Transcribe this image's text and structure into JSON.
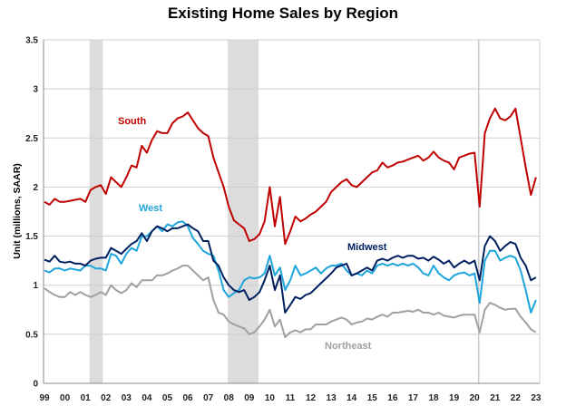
{
  "chart_data": {
    "type": "line",
    "title": "Existing Home Sales by Region",
    "ylabel": "Unit (millions, SAAR)",
    "xlabel": "",
    "ylim": [
      0,
      3.5
    ],
    "yticks": [
      "0",
      "0.5",
      "1",
      "1.5",
      "2",
      "2.5",
      "3",
      "3.5"
    ],
    "xlim": [
      1999,
      2023.2
    ],
    "xtick_labels": [
      "99",
      "00",
      "01",
      "02",
      "03",
      "04",
      "05",
      "06",
      "07",
      "08",
      "09",
      "10",
      "11",
      "12",
      "13",
      "14",
      "15",
      "16",
      "17",
      "18",
      "19",
      "20",
      "21",
      "22",
      "23"
    ],
    "grid": "horizontal",
    "shaded_periods": [
      [
        2001.2,
        2001.85
      ],
      [
        2007.95,
        2009.45
      ]
    ],
    "vertical_markers": [
      2020.2
    ],
    "x_start": 1999,
    "x_step_years": 0.25,
    "series": [
      {
        "name": "South",
        "color": "#C00000",
        "values": [
          1.85,
          1.82,
          1.88,
          1.85,
          1.85,
          1.86,
          1.87,
          1.88,
          1.85,
          1.97,
          2.0,
          2.02,
          1.93,
          2.1,
          2.05,
          2.0,
          2.1,
          2.22,
          2.2,
          2.42,
          2.35,
          2.48,
          2.57,
          2.55,
          2.55,
          2.65,
          2.7,
          2.72,
          2.76,
          2.68,
          2.6,
          2.55,
          2.52,
          2.3,
          2.15,
          2.0,
          1.8,
          1.66,
          1.62,
          1.58,
          1.45,
          1.47,
          1.52,
          1.65,
          2.0,
          1.6,
          1.9,
          1.42,
          1.55,
          1.7,
          1.65,
          1.68,
          1.72,
          1.75,
          1.8,
          1.85,
          1.95,
          2.0,
          2.05,
          2.08,
          2.02,
          2.0,
          2.05,
          2.1,
          2.15,
          2.17,
          2.25,
          2.2,
          2.22,
          2.25,
          2.26,
          2.28,
          2.3,
          2.32,
          2.27,
          2.3,
          2.36,
          2.3,
          2.27,
          2.25,
          2.18,
          2.3,
          2.32,
          2.34,
          2.35,
          1.8,
          2.55,
          2.7,
          2.8,
          2.7,
          2.68,
          2.72,
          2.8,
          2.5,
          2.2,
          1.92,
          2.1
        ]
      },
      {
        "name": "Midwest",
        "color": "#002060",
        "values": [
          1.26,
          1.24,
          1.3,
          1.24,
          1.23,
          1.24,
          1.22,
          1.22,
          1.2,
          1.25,
          1.27,
          1.28,
          1.28,
          1.38,
          1.35,
          1.32,
          1.37,
          1.42,
          1.45,
          1.53,
          1.45,
          1.55,
          1.6,
          1.58,
          1.55,
          1.58,
          1.58,
          1.6,
          1.62,
          1.58,
          1.55,
          1.45,
          1.45,
          1.25,
          1.2,
          1.08,
          1.0,
          0.95,
          0.93,
          0.95,
          0.85,
          0.88,
          0.93,
          1.05,
          1.2,
          0.95,
          1.1,
          0.72,
          0.8,
          0.88,
          0.86,
          0.9,
          0.92,
          0.97,
          1.02,
          1.07,
          1.12,
          1.18,
          1.2,
          1.22,
          1.1,
          1.12,
          1.15,
          1.18,
          1.15,
          1.25,
          1.27,
          1.25,
          1.28,
          1.3,
          1.28,
          1.3,
          1.3,
          1.27,
          1.28,
          1.25,
          1.29,
          1.26,
          1.22,
          1.25,
          1.18,
          1.22,
          1.25,
          1.22,
          1.25,
          1.05,
          1.4,
          1.5,
          1.45,
          1.35,
          1.4,
          1.44,
          1.42,
          1.28,
          1.2,
          1.05,
          1.08
        ]
      },
      {
        "name": "West",
        "color": "#1EA5DC",
        "values": [
          1.15,
          1.13,
          1.17,
          1.17,
          1.15,
          1.17,
          1.16,
          1.15,
          1.2,
          1.2,
          1.17,
          1.17,
          1.15,
          1.32,
          1.3,
          1.22,
          1.32,
          1.38,
          1.35,
          1.5,
          1.5,
          1.55,
          1.6,
          1.55,
          1.62,
          1.6,
          1.64,
          1.65,
          1.6,
          1.48,
          1.42,
          1.35,
          1.32,
          1.3,
          1.15,
          0.95,
          0.88,
          0.92,
          0.95,
          1.05,
          1.08,
          1.07,
          1.08,
          1.12,
          1.3,
          1.1,
          1.18,
          0.95,
          1.05,
          1.2,
          1.1,
          1.12,
          1.15,
          1.18,
          1.12,
          1.17,
          1.2,
          1.2,
          1.22,
          1.15,
          1.1,
          1.12,
          1.1,
          1.15,
          1.12,
          1.2,
          1.22,
          1.2,
          1.22,
          1.2,
          1.22,
          1.2,
          1.22,
          1.18,
          1.12,
          1.1,
          1.2,
          1.12,
          1.08,
          1.05,
          1.1,
          1.12,
          1.13,
          1.1,
          1.12,
          0.82,
          1.25,
          1.35,
          1.35,
          1.25,
          1.28,
          1.3,
          1.28,
          1.15,
          0.95,
          0.72,
          0.85
        ]
      },
      {
        "name": "Northeast",
        "color": "#A0A0A0",
        "values": [
          0.97,
          0.93,
          0.9,
          0.88,
          0.88,
          0.93,
          0.9,
          0.93,
          0.9,
          0.88,
          0.9,
          0.93,
          0.9,
          1.0,
          0.95,
          0.92,
          0.95,
          1.02,
          0.98,
          1.05,
          1.05,
          1.05,
          1.1,
          1.1,
          1.12,
          1.15,
          1.17,
          1.2,
          1.2,
          1.15,
          1.1,
          1.05,
          1.08,
          0.85,
          0.72,
          0.7,
          0.63,
          0.6,
          0.58,
          0.56,
          0.5,
          0.52,
          0.58,
          0.65,
          0.75,
          0.58,
          0.65,
          0.47,
          0.52,
          0.54,
          0.52,
          0.55,
          0.55,
          0.6,
          0.6,
          0.6,
          0.63,
          0.65,
          0.67,
          0.65,
          0.6,
          0.62,
          0.63,
          0.66,
          0.65,
          0.68,
          0.7,
          0.68,
          0.72,
          0.72,
          0.73,
          0.74,
          0.73,
          0.75,
          0.72,
          0.72,
          0.7,
          0.72,
          0.69,
          0.68,
          0.67,
          0.69,
          0.7,
          0.7,
          0.7,
          0.52,
          0.75,
          0.82,
          0.8,
          0.77,
          0.75,
          0.76,
          0.76,
          0.68,
          0.62,
          0.55,
          0.52
        ]
      }
    ]
  }
}
